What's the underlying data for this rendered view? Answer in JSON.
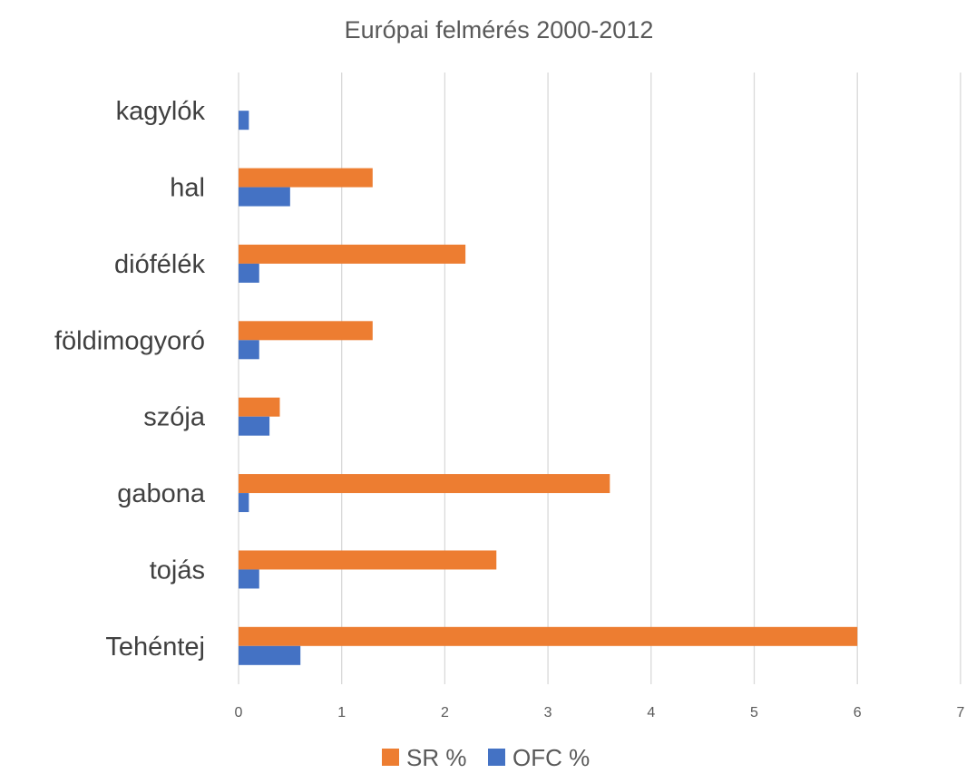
{
  "chart_data": {
    "type": "bar",
    "orientation": "horizontal",
    "title": "Európai felmérés 2000-2012",
    "categories": [
      "kagylók",
      "hal",
      "diófélék",
      "földimogyoró",
      "szója",
      "gabona",
      "tojás",
      "Tehéntej"
    ],
    "series": [
      {
        "name": "SR %",
        "color": "#ED7D31",
        "values": [
          0,
          1.3,
          2.2,
          1.3,
          0.4,
          3.6,
          2.5,
          6.0
        ]
      },
      {
        "name": "OFC %",
        "color": "#4472C4",
        "values": [
          0.1,
          0.5,
          0.2,
          0.2,
          0.3,
          0.1,
          0.2,
          0.6
        ]
      }
    ],
    "xlim": [
      0,
      7
    ],
    "xticks": [
      "0",
      "1",
      "2",
      "3",
      "4",
      "5",
      "6",
      "7"
    ],
    "grid": true,
    "legend_position": "bottom"
  }
}
